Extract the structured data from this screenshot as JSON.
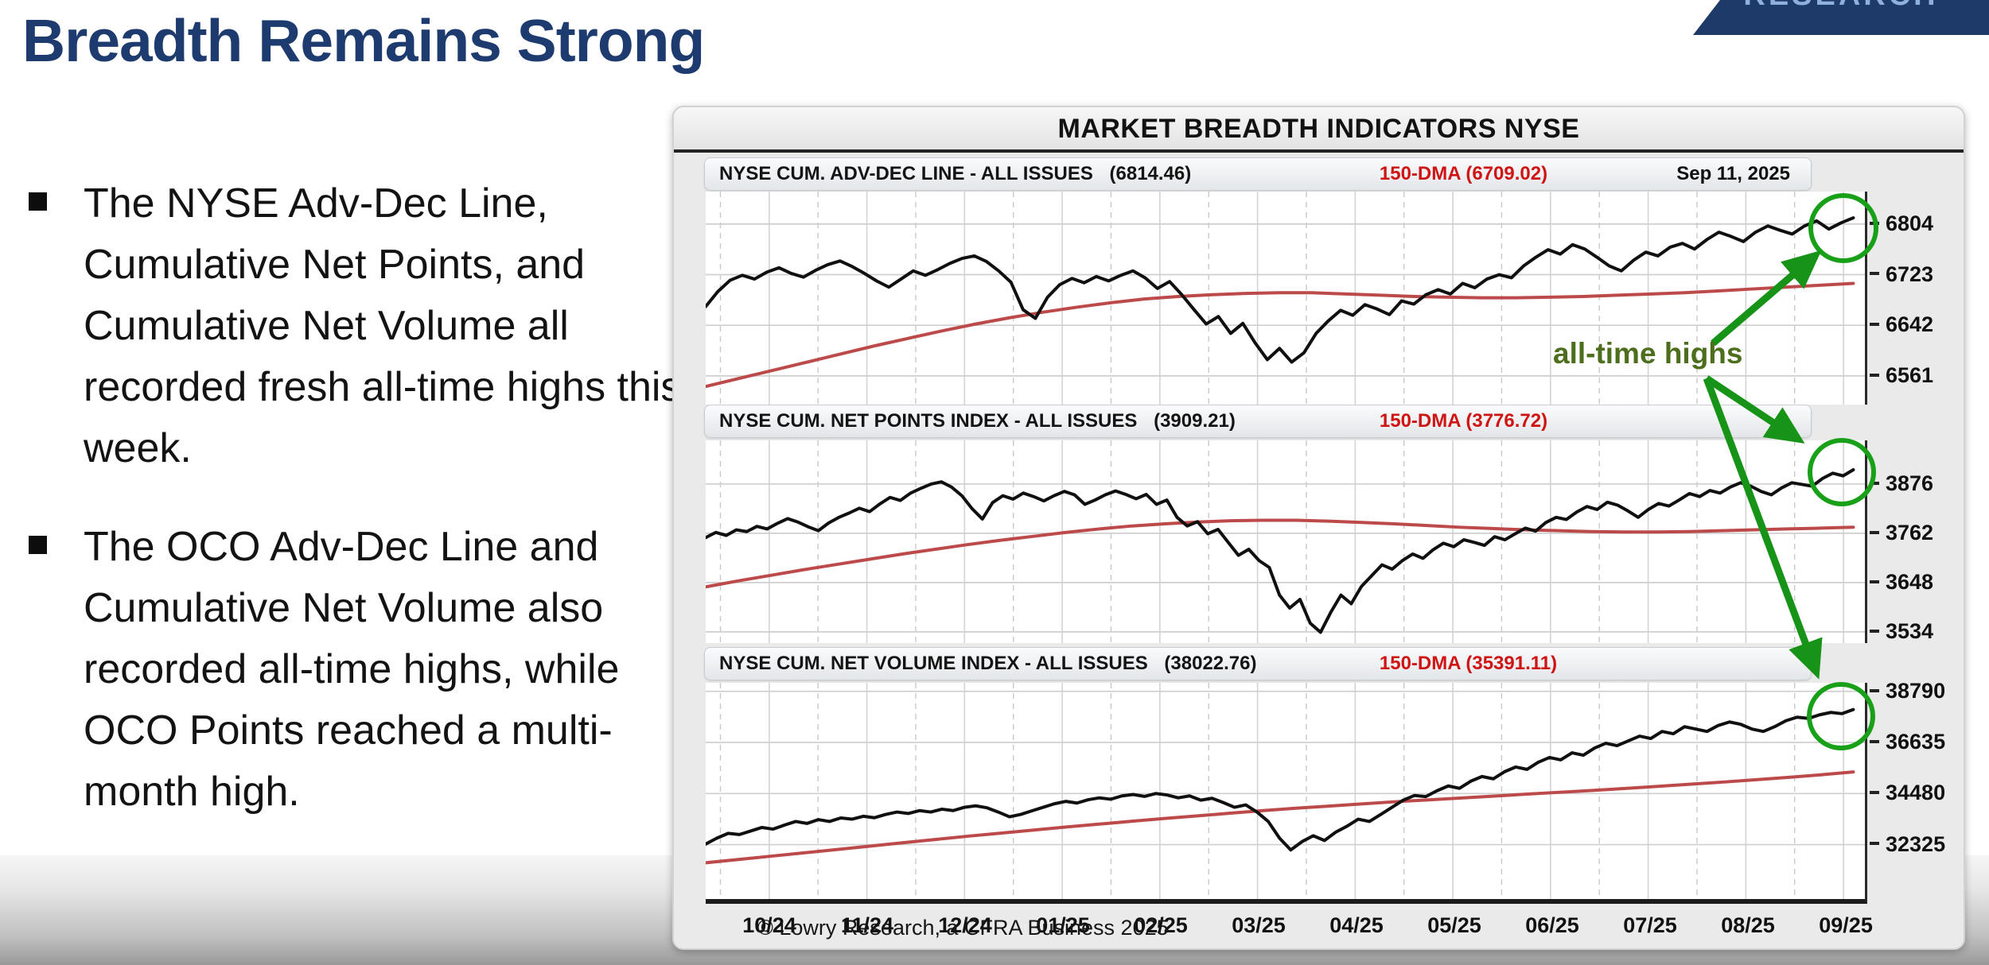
{
  "page": {
    "title": "Breadth Remains Strong",
    "corner_banner": "RESEARCH",
    "bullets": [
      "The NYSE Adv-Dec Line, Cumulative Net Points, and Cumulative Net Volume all recorded fresh all-time highs this week.",
      "The OCO Adv-Dec Line and Cumulative Net Volume also recorded all-time highs, while OCO Points reached a multi-month high."
    ]
  },
  "chart": {
    "title": "MARKET BREADTH INDICATORS NYSE",
    "date": "Sep 11, 2025",
    "annotation": "all-time highs",
    "copyright": "© Lowry Research, a CFRA Business 2025",
    "colors": {
      "price_line": "#101010",
      "dma_line": "#bd4a4a",
      "dma_text": "#cf1414",
      "annotation_green": "#179417",
      "circle_green": "#18a018",
      "annotation_text_green": "#4c6e1d",
      "title_navy": "#1d3b6e",
      "banner_navy": "#1d3a69"
    }
  },
  "x_axis": {
    "labels": [
      "10/24",
      "11/24",
      "12/24",
      "01/25",
      "02/25",
      "03/25",
      "04/25",
      "05/25",
      "06/25",
      "07/25",
      "08/25",
      "09/25"
    ]
  },
  "chart_data": [
    {
      "type": "line",
      "label": "NYSE CUM. ADV-DEC LINE - ALL ISSUES",
      "value": "(6814.46)",
      "dma": "150-DMA  (6709.02)",
      "date": "Sep 11, 2025",
      "yticks": [
        6804,
        6723,
        6642,
        6561
      ],
      "ymin": 6515,
      "ymax": 6856,
      "series": [
        {
          "name": "NYSE Cum. Adv-Dec Line",
          "color": "#101010",
          "width": 4,
          "values": [
            6672,
            6696,
            6714,
            6722,
            6716,
            6727,
            6734,
            6725,
            6719,
            6730,
            6739,
            6745,
            6736,
            6725,
            6713,
            6703,
            6716,
            6729,
            6722,
            6731,
            6741,
            6749,
            6753,
            6744,
            6729,
            6711,
            6667,
            6653,
            6687,
            6707,
            6717,
            6710,
            6720,
            6713,
            6722,
            6729,
            6718,
            6701,
            6712,
            6691,
            6667,
            6644,
            6656,
            6629,
            6645,
            6614,
            6587,
            6605,
            6583,
            6598,
            6629,
            6649,
            6666,
            6658,
            6675,
            6668,
            6659,
            6681,
            6676,
            6691,
            6699,
            6692,
            6709,
            6702,
            6716,
            6723,
            6718,
            6737,
            6751,
            6763,
            6756,
            6771,
            6764,
            6751,
            6737,
            6729,
            6746,
            6759,
            6753,
            6767,
            6773,
            6764,
            6779,
            6791,
            6784,
            6776,
            6791,
            6801,
            6794,
            6788,
            6801,
            6809,
            6796,
            6806,
            6814
          ]
        },
        {
          "name": "150-DMA",
          "color": "#bd4a4a",
          "width": 4,
          "values": [
            6544,
            6557,
            6570,
            6583,
            6596,
            6609,
            6621,
            6633,
            6644,
            6654,
            6663,
            6671,
            6678,
            6684,
            6688,
            6691,
            6693,
            6694,
            6694,
            6692,
            6690,
            6688,
            6687,
            6686,
            6686,
            6687,
            6688,
            6690,
            6692,
            6694,
            6697,
            6700,
            6703,
            6706,
            6709
          ]
        }
      ]
    },
    {
      "type": "line",
      "label": "NYSE CUM. NET POINTS INDEX - ALL ISSUES",
      "value": "(3909.21)",
      "dma": "150-DMA  (3776.72)",
      "yticks": [
        3876,
        3762,
        3648,
        3534
      ],
      "ymin": 3508,
      "ymax": 3977,
      "series": [
        {
          "name": "NYSE Cum. Net Points Index",
          "color": "#101010",
          "width": 4,
          "values": [
            3752,
            3764,
            3757,
            3770,
            3766,
            3778,
            3772,
            3785,
            3796,
            3788,
            3777,
            3768,
            3786,
            3799,
            3809,
            3820,
            3812,
            3830,
            3845,
            3838,
            3855,
            3866,
            3876,
            3881,
            3869,
            3849,
            3819,
            3795,
            3833,
            3849,
            3841,
            3855,
            3847,
            3837,
            3849,
            3859,
            3851,
            3829,
            3839,
            3851,
            3860,
            3852,
            3842,
            3852,
            3829,
            3839,
            3799,
            3779,
            3789,
            3761,
            3771,
            3741,
            3711,
            3725,
            3699,
            3683,
            3619,
            3589,
            3609,
            3554,
            3533,
            3579,
            3619,
            3599,
            3639,
            3664,
            3689,
            3679,
            3699,
            3714,
            3704,
            3724,
            3739,
            3731,
            3747,
            3741,
            3734,
            3754,
            3747,
            3761,
            3774,
            3767,
            3787,
            3799,
            3794,
            3811,
            3824,
            3817,
            3834,
            3827,
            3814,
            3799,
            3817,
            3831,
            3825,
            3839,
            3854,
            3847,
            3861,
            3855,
            3869,
            3879,
            3871,
            3859,
            3851,
            3867,
            3879,
            3875,
            3871,
            3889,
            3901,
            3895,
            3909
          ]
        },
        {
          "name": "150-DMA",
          "color": "#bd4a4a",
          "width": 4,
          "values": [
            3638,
            3652,
            3665,
            3678,
            3690,
            3702,
            3714,
            3725,
            3736,
            3746,
            3755,
            3764,
            3772,
            3779,
            3784,
            3788,
            3791,
            3792,
            3792,
            3790,
            3787,
            3784,
            3780,
            3776,
            3773,
            3770,
            3768,
            3766,
            3765,
            3765,
            3766,
            3768,
            3770,
            3772,
            3774,
            3776
          ]
        }
      ]
    },
    {
      "type": "line",
      "label": "NYSE CUM. NET VOLUME INDEX - ALL ISSUES",
      "value": "(38022.76)",
      "dma": "150-DMA  (35391.11)",
      "yticks": [
        38790,
        36635,
        34480,
        32325
      ],
      "ymin": 30030,
      "ymax": 39151,
      "series": [
        {
          "name": "NYSE Cum. Net Volume Index",
          "color": "#101010",
          "width": 4,
          "values": [
            32350,
            32600,
            32800,
            32750,
            32900,
            33050,
            32980,
            33150,
            33300,
            33220,
            33380,
            33300,
            33450,
            33400,
            33520,
            33460,
            33600,
            33700,
            33640,
            33760,
            33700,
            33820,
            33760,
            33900,
            33960,
            33880,
            33700,
            33500,
            33600,
            33750,
            33900,
            34050,
            34150,
            34080,
            34220,
            34300,
            34240,
            34380,
            34440,
            34360,
            34480,
            34420,
            34300,
            34380,
            34200,
            34280,
            34100,
            33900,
            34000,
            33700,
            33300,
            32600,
            32100,
            32450,
            32700,
            32500,
            32850,
            33100,
            33400,
            33300,
            33600,
            33900,
            34200,
            34400,
            34350,
            34600,
            34800,
            34700,
            35000,
            35200,
            35100,
            35400,
            35600,
            35500,
            35800,
            36000,
            35900,
            36200,
            36100,
            36400,
            36600,
            36500,
            36700,
            36900,
            36800,
            37100,
            37000,
            37300,
            37200,
            37100,
            37350,
            37500,
            37400,
            37200,
            37100,
            37300,
            37550,
            37700,
            37650,
            37800,
            37900,
            37850,
            38022
          ]
        },
        {
          "name": "150-DMA",
          "color": "#bd4a4a",
          "width": 4,
          "values": [
            31560,
            31700,
            31840,
            31980,
            32120,
            32260,
            32400,
            32540,
            32680,
            32810,
            32940,
            33070,
            33190,
            33310,
            33430,
            33540,
            33650,
            33760,
            33860,
            33950,
            34040,
            34130,
            34210,
            34290,
            34370,
            34450,
            34530,
            34610,
            34690,
            34780,
            34870,
            34960,
            35060,
            35160,
            35270,
            35391
          ]
        }
      ]
    }
  ]
}
